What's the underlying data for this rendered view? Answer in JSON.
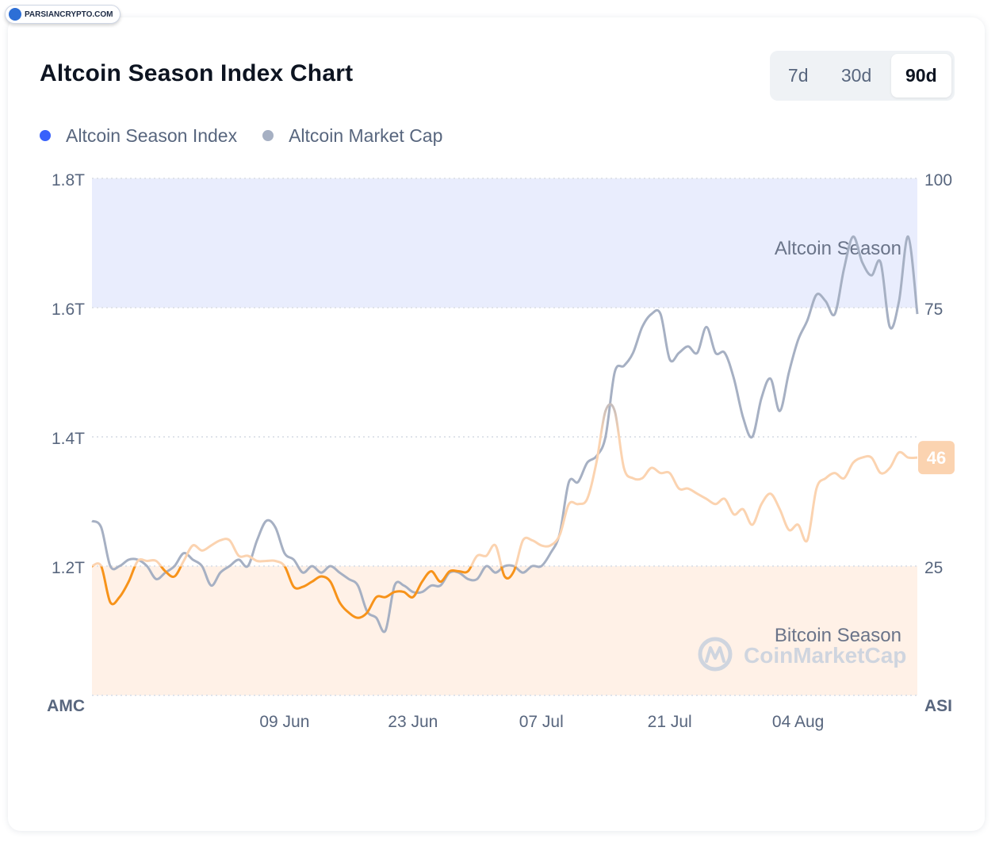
{
  "watermark": {
    "text": "PARSIANCRYPTO.COM"
  },
  "header": {
    "title": "Altcoin Season Index Chart"
  },
  "range_tabs": [
    {
      "label": "7d",
      "active": false
    },
    {
      "label": "30d",
      "active": false
    },
    {
      "label": "90d",
      "active": true
    }
  ],
  "legend": [
    {
      "label": "Altcoin Season Index",
      "color": "#3861fb"
    },
    {
      "label": "Altcoin Market Cap",
      "color": "#a6b0c3"
    }
  ],
  "chart_data": {
    "type": "line",
    "axis_left_label": "AMC",
    "axis_right_label": "ASI",
    "left_ticks": [
      "1.2T",
      "1.4T",
      "1.6T",
      "1.8T"
    ],
    "left_range": [
      1.0,
      1.8
    ],
    "right_ticks": [
      "25",
      "75",
      "100"
    ],
    "right_range": [
      0,
      100
    ],
    "x_range": [
      "2024-05-19",
      "2024-08-17"
    ],
    "x_ticks": [
      {
        "date": "2024-06-09",
        "label": "09 Jun"
      },
      {
        "date": "2024-06-23",
        "label": "23 Jun"
      },
      {
        "date": "2024-07-07",
        "label": "07 Jul"
      },
      {
        "date": "2024-07-21",
        "label": "21 Jul"
      },
      {
        "date": "2024-08-04",
        "label": "04 Aug"
      }
    ],
    "bands": [
      {
        "label": "Altcoin Season",
        "from": 75,
        "to": 100,
        "color": "#e9edfd"
      },
      {
        "label": "Bitcoin Season",
        "from": 0,
        "to": 25,
        "color": "#fff1e7"
      }
    ],
    "grid": true,
    "current_badge": {
      "value": "46",
      "color": "#fbd3b0"
    },
    "brand_watermark": "CoinMarketCap",
    "series": [
      {
        "name": "Altcoin Market Cap",
        "axis": "left",
        "color": "#a6b0c3",
        "points": [
          [
            "2024-05-19",
            1.27
          ],
          [
            "2024-05-20",
            1.26
          ],
          [
            "2024-05-21",
            1.2
          ],
          [
            "2024-05-22",
            1.2
          ],
          [
            "2024-05-23",
            1.21
          ],
          [
            "2024-05-24",
            1.21
          ],
          [
            "2024-05-25",
            1.2
          ],
          [
            "2024-05-26",
            1.18
          ],
          [
            "2024-05-27",
            1.19
          ],
          [
            "2024-05-28",
            1.2
          ],
          [
            "2024-05-29",
            1.22
          ],
          [
            "2024-05-30",
            1.21
          ],
          [
            "2024-05-31",
            1.2
          ],
          [
            "2024-06-01",
            1.17
          ],
          [
            "2024-06-02",
            1.19
          ],
          [
            "2024-06-03",
            1.2
          ],
          [
            "2024-06-04",
            1.21
          ],
          [
            "2024-06-05",
            1.2
          ],
          [
            "2024-06-06",
            1.24
          ],
          [
            "2024-06-07",
            1.27
          ],
          [
            "2024-06-08",
            1.26
          ],
          [
            "2024-06-09",
            1.22
          ],
          [
            "2024-06-10",
            1.21
          ],
          [
            "2024-06-11",
            1.19
          ],
          [
            "2024-06-12",
            1.2
          ],
          [
            "2024-06-13",
            1.19
          ],
          [
            "2024-06-14",
            1.2
          ],
          [
            "2024-06-15",
            1.19
          ],
          [
            "2024-06-16",
            1.18
          ],
          [
            "2024-06-17",
            1.17
          ],
          [
            "2024-06-18",
            1.13
          ],
          [
            "2024-06-19",
            1.12
          ],
          [
            "2024-06-20",
            1.1
          ],
          [
            "2024-06-21",
            1.17
          ],
          [
            "2024-06-22",
            1.17
          ],
          [
            "2024-06-23",
            1.16
          ],
          [
            "2024-06-24",
            1.16
          ],
          [
            "2024-06-25",
            1.17
          ],
          [
            "2024-06-26",
            1.17
          ],
          [
            "2024-06-27",
            1.19
          ],
          [
            "2024-06-28",
            1.19
          ],
          [
            "2024-06-29",
            1.18
          ],
          [
            "2024-06-30",
            1.18
          ],
          [
            "2024-07-01",
            1.2
          ],
          [
            "2024-07-02",
            1.19
          ],
          [
            "2024-07-03",
            1.2
          ],
          [
            "2024-07-04",
            1.2
          ],
          [
            "2024-07-05",
            1.19
          ],
          [
            "2024-07-06",
            1.2
          ],
          [
            "2024-07-07",
            1.2
          ],
          [
            "2024-07-08",
            1.22
          ],
          [
            "2024-07-09",
            1.25
          ],
          [
            "2024-07-10",
            1.33
          ],
          [
            "2024-07-11",
            1.33
          ],
          [
            "2024-07-12",
            1.36
          ],
          [
            "2024-07-13",
            1.37
          ],
          [
            "2024-07-14",
            1.4
          ],
          [
            "2024-07-15",
            1.5
          ],
          [
            "2024-07-16",
            1.51
          ],
          [
            "2024-07-17",
            1.53
          ],
          [
            "2024-07-18",
            1.57
          ],
          [
            "2024-07-19",
            1.59
          ],
          [
            "2024-07-20",
            1.59
          ],
          [
            "2024-07-21",
            1.52
          ],
          [
            "2024-07-22",
            1.53
          ],
          [
            "2024-07-23",
            1.54
          ],
          [
            "2024-07-24",
            1.53
          ],
          [
            "2024-07-25",
            1.57
          ],
          [
            "2024-07-26",
            1.53
          ],
          [
            "2024-07-27",
            1.53
          ],
          [
            "2024-07-28",
            1.49
          ],
          [
            "2024-07-29",
            1.43
          ],
          [
            "2024-07-30",
            1.4
          ],
          [
            "2024-07-31",
            1.46
          ],
          [
            "2024-08-01",
            1.49
          ],
          [
            "2024-08-02",
            1.44
          ],
          [
            "2024-08-03",
            1.5
          ],
          [
            "2024-08-04",
            1.55
          ],
          [
            "2024-08-05",
            1.58
          ],
          [
            "2024-08-06",
            1.62
          ],
          [
            "2024-08-07",
            1.61
          ],
          [
            "2024-08-08",
            1.59
          ],
          [
            "2024-08-09",
            1.66
          ],
          [
            "2024-08-10",
            1.71
          ],
          [
            "2024-08-11",
            1.67
          ],
          [
            "2024-08-12",
            1.65
          ],
          [
            "2024-08-13",
            1.67
          ],
          [
            "2024-08-14",
            1.57
          ],
          [
            "2024-08-15",
            1.61
          ],
          [
            "2024-08-16",
            1.71
          ],
          [
            "2024-08-17",
            1.59
          ]
        ]
      },
      {
        "name": "Altcoin Season Index",
        "axis": "right",
        "color_low": "#f7931a",
        "color_mid": "#fbd3b0",
        "color_high": "#a6b0c3",
        "points": [
          [
            "2024-05-19",
            25
          ],
          [
            "2024-05-20",
            25
          ],
          [
            "2024-05-21",
            18
          ],
          [
            "2024-05-22",
            19
          ],
          [
            "2024-05-23",
            22
          ],
          [
            "2024-05-24",
            26
          ],
          [
            "2024-05-25",
            26
          ],
          [
            "2024-05-26",
            26
          ],
          [
            "2024-05-27",
            24
          ],
          [
            "2024-05-28",
            23
          ],
          [
            "2024-05-29",
            26
          ],
          [
            "2024-05-30",
            29
          ],
          [
            "2024-05-31",
            28
          ],
          [
            "2024-06-01",
            29
          ],
          [
            "2024-06-02",
            30
          ],
          [
            "2024-06-03",
            30
          ],
          [
            "2024-06-04",
            27
          ],
          [
            "2024-06-05",
            27
          ],
          [
            "2024-06-06",
            26
          ],
          [
            "2024-06-07",
            26
          ],
          [
            "2024-06-08",
            26
          ],
          [
            "2024-06-09",
            25
          ],
          [
            "2024-06-10",
            21
          ],
          [
            "2024-06-11",
            21
          ],
          [
            "2024-06-12",
            22
          ],
          [
            "2024-06-13",
            23
          ],
          [
            "2024-06-14",
            22
          ],
          [
            "2024-06-15",
            18
          ],
          [
            "2024-06-16",
            16
          ],
          [
            "2024-06-17",
            15
          ],
          [
            "2024-06-18",
            16
          ],
          [
            "2024-06-19",
            19
          ],
          [
            "2024-06-20",
            19
          ],
          [
            "2024-06-21",
            20
          ],
          [
            "2024-06-22",
            20
          ],
          [
            "2024-06-23",
            19
          ],
          [
            "2024-06-24",
            22
          ],
          [
            "2024-06-25",
            24
          ],
          [
            "2024-06-26",
            22
          ],
          [
            "2024-06-27",
            24
          ],
          [
            "2024-06-28",
            24
          ],
          [
            "2024-06-29",
            24
          ],
          [
            "2024-06-30",
            27
          ],
          [
            "2024-07-01",
            27
          ],
          [
            "2024-07-02",
            29
          ],
          [
            "2024-07-03",
            23
          ],
          [
            "2024-07-04",
            24
          ],
          [
            "2024-07-05",
            30
          ],
          [
            "2024-07-06",
            30
          ],
          [
            "2024-07-07",
            29
          ],
          [
            "2024-07-08",
            29
          ],
          [
            "2024-07-09",
            31
          ],
          [
            "2024-07-10",
            37
          ],
          [
            "2024-07-11",
            37
          ],
          [
            "2024-07-12",
            38
          ],
          [
            "2024-07-13",
            45
          ],
          [
            "2024-07-14",
            55
          ],
          [
            "2024-07-15",
            55
          ],
          [
            "2024-07-16",
            44
          ],
          [
            "2024-07-17",
            42
          ],
          [
            "2024-07-18",
            42
          ],
          [
            "2024-07-19",
            44
          ],
          [
            "2024-07-20",
            43
          ],
          [
            "2024-07-21",
            43
          ],
          [
            "2024-07-22",
            40
          ],
          [
            "2024-07-23",
            40
          ],
          [
            "2024-07-24",
            39
          ],
          [
            "2024-07-25",
            38
          ],
          [
            "2024-07-26",
            37
          ],
          [
            "2024-07-27",
            38
          ],
          [
            "2024-07-28",
            35
          ],
          [
            "2024-07-29",
            36
          ],
          [
            "2024-07-30",
            33
          ],
          [
            "2024-07-31",
            37
          ],
          [
            "2024-08-01",
            39
          ],
          [
            "2024-08-02",
            36
          ],
          [
            "2024-08-03",
            32
          ],
          [
            "2024-08-04",
            33
          ],
          [
            "2024-08-05",
            30
          ],
          [
            "2024-08-06",
            40
          ],
          [
            "2024-08-07",
            42
          ],
          [
            "2024-08-08",
            43
          ],
          [
            "2024-08-09",
            42
          ],
          [
            "2024-08-10",
            45
          ],
          [
            "2024-08-11",
            46
          ],
          [
            "2024-08-12",
            46
          ],
          [
            "2024-08-13",
            43
          ],
          [
            "2024-08-14",
            44
          ],
          [
            "2024-08-15",
            47
          ],
          [
            "2024-08-16",
            46
          ],
          [
            "2024-08-17",
            46
          ]
        ]
      }
    ]
  }
}
